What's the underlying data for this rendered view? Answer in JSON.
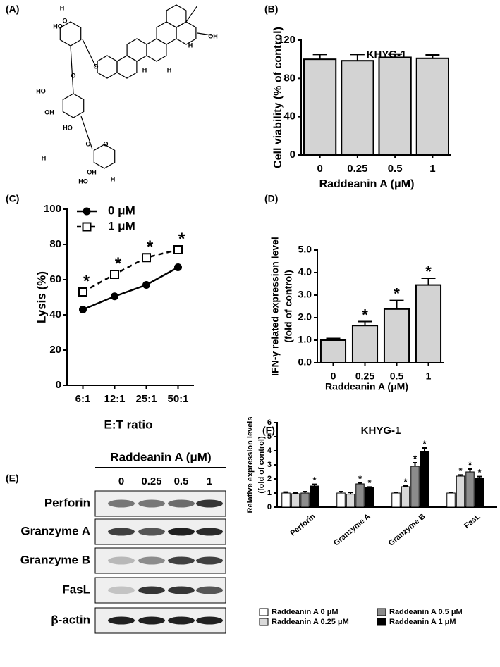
{
  "structure": {
    "label": "(A)",
    "atoms": [
      "O",
      "OH",
      "HO",
      "H"
    ]
  },
  "blot": {
    "label": "(E)",
    "header": "Raddeanin A (μM)",
    "lanes": [
      "0",
      "0.25",
      "0.5",
      "1"
    ],
    "rows": [
      "Perforin",
      "Granzyme A",
      "Granzyme B",
      "FasL",
      "β-actin"
    ]
  },
  "chart_data": [
    {
      "panel": "(B)",
      "type": "bar",
      "title": "KHYG-1",
      "categories": [
        "0",
        "0.25",
        "0.5",
        "1"
      ],
      "values": [
        100,
        98.5,
        102,
        101
      ],
      "errors": [
        5,
        6.5,
        3.5,
        3.5
      ],
      "color": "#d3d3d3",
      "ylabel": "Cell viability (% of control)",
      "xlabel": "Raddeanin A (μM)",
      "ylim": [
        0,
        120
      ],
      "yticks": [
        0,
        40,
        80,
        120
      ]
    },
    {
      "panel": "(C)",
      "type": "line",
      "categories": [
        "6:1",
        "12:1",
        "25:1",
        "50:1"
      ],
      "series": [
        {
          "name": "0 μM",
          "color": "#000000",
          "marker": "circle",
          "values": [
            43,
            50.5,
            57,
            67
          ]
        },
        {
          "name": "1 μM",
          "color": "#000000",
          "marker": "square",
          "dashed": true,
          "values": [
            53,
            63,
            72.5,
            77
          ],
          "annotations": [
            "*",
            "*",
            "*",
            "*"
          ]
        }
      ],
      "ylabel": "Lysis (%)",
      "xlabel": "E:T ratio",
      "ylim": [
        0,
        100
      ],
      "yticks": [
        0,
        20,
        40,
        60,
        80,
        100
      ],
      "legend": "top-left"
    },
    {
      "panel": "(D)",
      "type": "bar",
      "categories": [
        "0",
        "0.25",
        "0.5",
        "1"
      ],
      "values": [
        1.0,
        1.65,
        2.38,
        3.45
      ],
      "errors": [
        0.08,
        0.18,
        0.38,
        0.3
      ],
      "annotations": [
        null,
        "*",
        "*",
        "*"
      ],
      "color": "#d3d3d3",
      "ylabel": [
        "IFN-γ related expression level",
        "(fold of control)"
      ],
      "xlabel": "Raddeanin A (μM)",
      "ylim": [
        0,
        5
      ],
      "yticks": [
        {
          "value": 0,
          "label": "0.0"
        },
        {
          "value": 1,
          "label": "1.0"
        },
        {
          "value": 2,
          "label": "2.0"
        },
        {
          "value": 3,
          "label": "3.0"
        },
        {
          "value": 4,
          "label": "4.0"
        },
        {
          "value": 5,
          "label": "5.0"
        }
      ]
    },
    {
      "panel": "(F)",
      "type": "bar",
      "title": "KHYG-1",
      "categories": [
        "Perforin",
        "Granzyme A",
        "Granzyme B",
        "FasL"
      ],
      "series": [
        {
          "name": "Raddeanin A 0 μM",
          "color": "#ffffff",
          "values": [
            1,
            1,
            1,
            1
          ],
          "errors": [
            0.07,
            0.1,
            0.05,
            0.03
          ]
        },
        {
          "name": "Raddeanin A 0.25 μM",
          "color": "#d9d9d9",
          "values": [
            0.95,
            0.92,
            1.45,
            2.2
          ],
          "errors": [
            0.06,
            0.12,
            0.05,
            0.08
          ],
          "annotations": [
            null,
            null,
            "*",
            "*"
          ]
        },
        {
          "name": "Raddeanin A 0.5 μM",
          "color": "#8c8c8c",
          "values": [
            1.0,
            1.65,
            2.9,
            2.5
          ],
          "errors": [
            0.1,
            0.08,
            0.25,
            0.2
          ],
          "annotations": [
            null,
            "*",
            "*",
            "*"
          ]
        },
        {
          "name": "Raddeanin A 1 μM",
          "color": "#000000",
          "values": [
            1.5,
            1.38,
            3.95,
            2.05
          ],
          "errors": [
            0.12,
            0.05,
            0.25,
            0.12
          ],
          "annotations": [
            "*",
            "*",
            "*",
            "*"
          ]
        }
      ],
      "ylabel": [
        "Relative expression levels",
        "(fold of control)"
      ],
      "ylim": [
        0,
        6
      ],
      "yticks": [
        0,
        1,
        2,
        3,
        4,
        5,
        6
      ],
      "legend": "bottom"
    }
  ]
}
